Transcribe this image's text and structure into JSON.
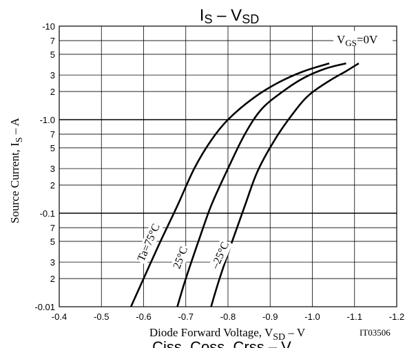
{
  "chart_data": {
    "type": "line",
    "title": {
      "main": "I",
      "sub1": "S",
      "mid": "  –  V",
      "sub2": "SD"
    },
    "xlabel": {
      "pre": "Diode Forward Voltage, V",
      "sub": "SD",
      "post": "  –  V"
    },
    "ylabel": {
      "pre": "Source Current, I",
      "sub": "S",
      "post": "  –  A"
    },
    "xlim": [
      -0.4,
      -1.2
    ],
    "ylim": [
      -0.01,
      -10
    ],
    "y_scale": "log",
    "grid": true,
    "x_ticks": [
      "-0.4",
      "-0.5",
      "-0.6",
      "-0.7",
      "-0.8",
      "-0.9",
      "-1.0",
      "-1.1",
      "-1.2"
    ],
    "y_tick_labels": [
      {
        "v": 0.01,
        "t": "-0.01"
      },
      {
        "v": 0.02,
        "t": "2"
      },
      {
        "v": 0.03,
        "t": "3"
      },
      {
        "v": 0.05,
        "t": "5"
      },
      {
        "v": 0.07,
        "t": "7"
      },
      {
        "v": 0.1,
        "t": "-0.1"
      },
      {
        "v": 0.2,
        "t": "2"
      },
      {
        "v": 0.3,
        "t": "3"
      },
      {
        "v": 0.5,
        "t": "5"
      },
      {
        "v": 0.7,
        "t": "7"
      },
      {
        "v": 1,
        "t": "-1.0"
      },
      {
        "v": 2,
        "t": "2"
      },
      {
        "v": 3,
        "t": "3"
      },
      {
        "v": 5,
        "t": "5"
      },
      {
        "v": 7,
        "t": "7"
      },
      {
        "v": 10,
        "t": "-10"
      }
    ],
    "annotation": {
      "pre": "V",
      "sub": "GS",
      "post": "=0V"
    },
    "code": "IT03506",
    "series": [
      {
        "label": "Ta=75°C",
        "x": [
          -0.57,
          -0.6,
          -0.64,
          -0.68,
          -0.72,
          -0.76,
          -0.8,
          -0.86,
          -0.92,
          -0.98,
          -1.04
        ],
        "y": [
          -0.01,
          -0.02,
          -0.05,
          -0.12,
          -0.3,
          -0.6,
          -1.0,
          -1.7,
          -2.5,
          -3.3,
          -4.0
        ]
      },
      {
        "label": "25°C",
        "x": [
          -0.68,
          -0.7,
          -0.73,
          -0.76,
          -0.8,
          -0.84,
          -0.88,
          -0.93,
          -0.98,
          -1.03,
          -1.08
        ],
        "y": [
          -0.01,
          -0.02,
          -0.05,
          -0.12,
          -0.3,
          -0.7,
          -1.3,
          -2.0,
          -2.8,
          -3.5,
          -4.0
        ]
      },
      {
        "label": "–25°C",
        "x": [
          -0.76,
          -0.78,
          -0.81,
          -0.84,
          -0.87,
          -0.91,
          -0.95,
          -0.99,
          -1.04,
          -1.08,
          -1.11
        ],
        "y": [
          -0.01,
          -0.02,
          -0.05,
          -0.12,
          -0.28,
          -0.6,
          -1.1,
          -1.8,
          -2.6,
          -3.3,
          -4.0
        ]
      }
    ],
    "footer_partial": "Ciss, Coss, Crss  –  V"
  }
}
